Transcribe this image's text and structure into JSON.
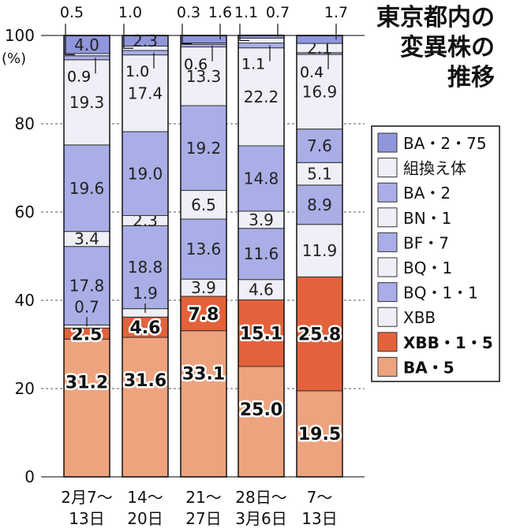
{
  "title": [
    "東京都内の",
    "変異株の",
    "推移"
  ],
  "chart_data": {
    "type": "bar",
    "stacked": true,
    "ylabel": "(%)",
    "ylim": [
      0,
      100
    ],
    "yticks": [
      "0",
      "20",
      "40",
      "60",
      "80",
      "100"
    ],
    "categories": [
      [
        "2月7～",
        "13日"
      ],
      [
        "14～",
        "20日"
      ],
      [
        "21～",
        "27日"
      ],
      [
        "28日～",
        "3月6日"
      ],
      [
        "7～",
        "13日"
      ]
    ],
    "series": [
      {
        "name": "BA・5",
        "color": "#eea37f",
        "values": [
          31.2,
          31.6,
          33.1,
          25.0,
          19.5
        ],
        "labels": [
          "31.2",
          "31.6",
          "33.1",
          "25.0",
          "19.5"
        ]
      },
      {
        "name": "XBB・1・5",
        "color": "#e3623b",
        "values": [
          2.5,
          4.6,
          7.8,
          15.1,
          25.8
        ],
        "labels": [
          "2.5",
          "4.6",
          "7.8",
          "15.1",
          "25.8"
        ]
      },
      {
        "name": "XBB",
        "color": "#efeff8",
        "values": [
          0.7,
          1.9,
          3.9,
          4.6,
          11.9
        ],
        "labels": [
          "0.7",
          "1.9",
          "3.9",
          "4.6",
          "11.9"
        ]
      },
      {
        "name": "BQ・1・1",
        "color": "#a9aee6",
        "values": [
          17.8,
          18.8,
          13.6,
          11.6,
          8.9
        ],
        "labels": [
          "17.8",
          "18.8",
          "13.6",
          "11.6",
          "8.9"
        ]
      },
      {
        "name": "BQ・1",
        "color": "#efeff8",
        "values": [
          3.4,
          2.3,
          6.5,
          3.9,
          5.1
        ],
        "labels": [
          "3.4",
          "2.3",
          "6.5",
          "3.9",
          "5.1"
        ]
      },
      {
        "name": "BF・7",
        "color": "#a9aee6",
        "values": [
          19.6,
          19.0,
          19.2,
          14.8,
          7.6
        ],
        "labels": [
          "19.6",
          "19.0",
          "19.2",
          "14.8",
          "7.6"
        ]
      },
      {
        "name": "BN・1",
        "color": "#efeff8",
        "values": [
          19.3,
          17.4,
          13.3,
          22.2,
          16.9
        ],
        "labels": [
          "19.3",
          "17.4",
          "13.3",
          "22.2",
          "16.9"
        ]
      },
      {
        "name": "BA・2",
        "color": "#a9aee6",
        "values": [
          0.9,
          1.0,
          0.6,
          1.1,
          0.4
        ],
        "labels": [
          "0.9",
          "1.0",
          "0.6",
          "1.1",
          "0.4"
        ]
      },
      {
        "name": "組換え体",
        "color": "#efeff8",
        "values": [
          0.5,
          1.0,
          0.3,
          1.1,
          2.1
        ],
        "labels": [
          "0.5",
          "1.0",
          "0.3",
          "1.1",
          "2.1"
        ]
      },
      {
        "name": "BA・2・75",
        "color": "#8f96dc",
        "values": [
          4.0,
          2.3,
          1.6,
          0.7,
          1.7
        ],
        "labels": [
          "4.0",
          "2.3",
          "1.6",
          "0.7",
          "1.7"
        ]
      }
    ],
    "legend": {
      "placement": "right",
      "entries": [
        "BA・2・75",
        "組換え体",
        "BA・2",
        "BN・1",
        "BF・7",
        "BQ・1",
        "BQ・1・1",
        "XBB",
        "XBB・1・5",
        "BA・5"
      ]
    },
    "grid": true
  }
}
